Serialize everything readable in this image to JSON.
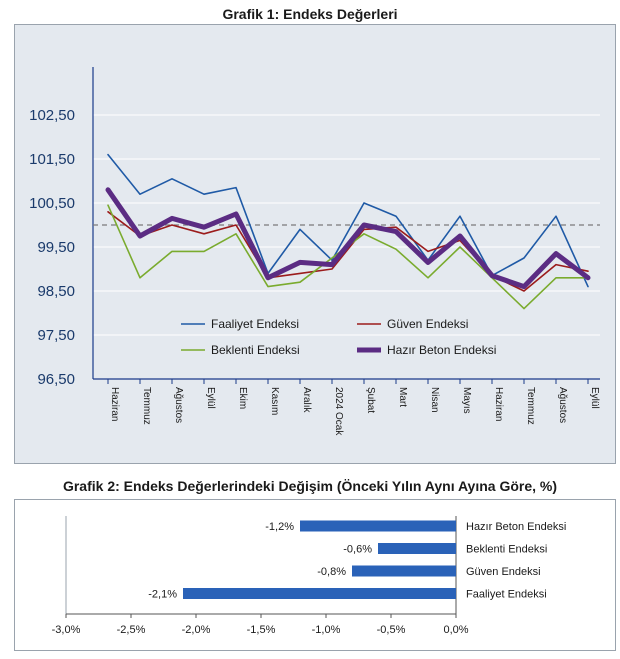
{
  "chart_data": [
    {
      "type": "line",
      "title": "Grafik 1: Endeks Değerleri",
      "ylim": [
        96.5,
        103.5
      ],
      "yticks": [
        "96,50",
        "97,50",
        "98,50",
        "99,50",
        "100,50",
        "101,50",
        "102,50"
      ],
      "ytick_values": [
        96.5,
        97.5,
        98.5,
        99.5,
        100.5,
        101.5,
        102.5
      ],
      "categories": [
        "Haziran",
        "Temmuz",
        "Ağustos",
        "Eylül",
        "Ekim",
        "Kasım",
        "Aralık",
        "2024 Ocak",
        "Şubat",
        "Mart",
        "Nisan",
        "Mayıs",
        "Haziran",
        "Temmuz",
        "Ağustos",
        "Eylül"
      ],
      "reference_line": 100,
      "series": [
        {
          "name": "Faaliyet Endeksi",
          "color": "#1f5aa6",
          "values": [
            101.6,
            100.7,
            101.05,
            100.7,
            100.85,
            98.9,
            99.9,
            99.2,
            100.5,
            100.2,
            99.2,
            100.2,
            98.85,
            99.25,
            100.2,
            98.6
          ]
        },
        {
          "name": "Güven Endeksi",
          "color": "#9b1c1c",
          "values": [
            100.3,
            99.75,
            100.0,
            99.8,
            100.0,
            98.8,
            98.9,
            99.0,
            99.9,
            99.95,
            99.4,
            99.65,
            98.85,
            98.5,
            99.1,
            98.95
          ]
        },
        {
          "name": "Beklenti Endeksi",
          "color": "#7aab2e",
          "values": [
            100.45,
            98.8,
            99.4,
            99.4,
            99.8,
            98.6,
            98.7,
            99.25,
            99.8,
            99.45,
            98.8,
            99.5,
            98.8,
            98.1,
            98.8,
            98.8
          ]
        },
        {
          "name": "Hazır Beton Endeksi",
          "color": "#5b2c83",
          "values": [
            100.8,
            99.75,
            100.15,
            99.95,
            100.25,
            98.8,
            99.15,
            99.1,
            100.0,
            99.85,
            99.15,
            99.75,
            98.85,
            98.6,
            99.35,
            98.8
          ]
        }
      ]
    },
    {
      "type": "bar",
      "orientation": "horizontal",
      "title": "Grafik 2: Endeks Değerlerindeki Değişim (Önceki Yılın Aynı Ayına Göre, %)",
      "xlim": [
        -3.0,
        0.0
      ],
      "xticks": [
        "-3,0%",
        "-2,5%",
        "-2,0%",
        "-1,5%",
        "-1,0%",
        "-0,5%",
        "0,0%"
      ],
      "xtick_values": [
        -3.0,
        -2.5,
        -2.0,
        -1.5,
        -1.0,
        -0.5,
        0.0
      ],
      "bar_color": "#2a62b8",
      "categories": [
        "Hazır Beton Endeksi",
        "Beklenti Endeksi",
        "Güven Endeksi",
        "Faaliyet Endeksi"
      ],
      "values": [
        -1.2,
        -0.6,
        -0.8,
        -2.1
      ],
      "data_labels": [
        "-1,2%",
        "-0,6%",
        "-0,8%",
        "-2,1%"
      ]
    }
  ]
}
